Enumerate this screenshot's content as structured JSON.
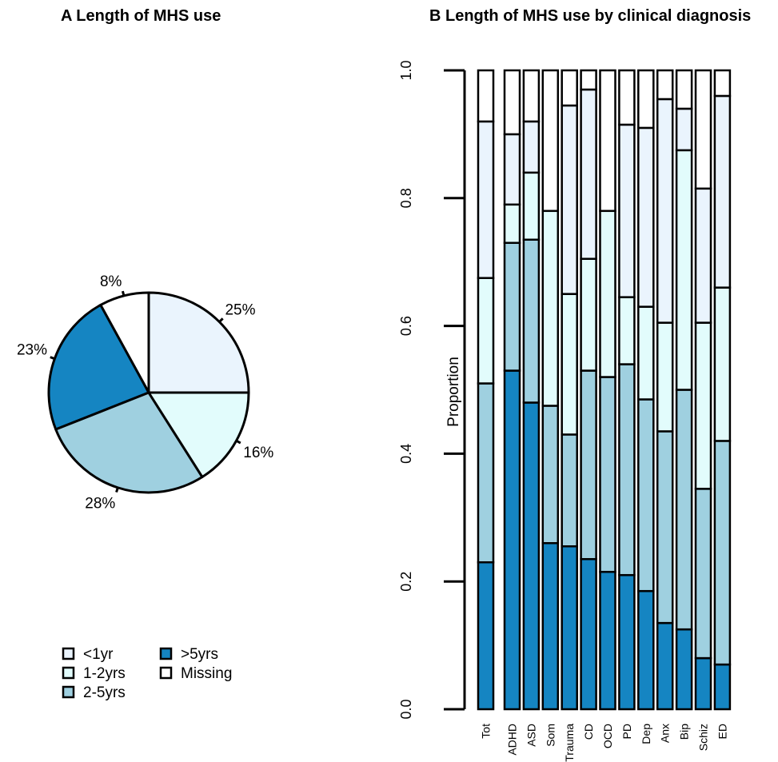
{
  "chart_data": [
    {
      "type": "pie",
      "title": "A  Length of MHS use",
      "slices": [
        {
          "name": "<1yr",
          "value": 25,
          "label": "25%",
          "color": "#eaf4fd"
        },
        {
          "name": "Missing",
          "value": 8,
          "label": "8%",
          "color": "#ffffff"
        },
        {
          "name": ">5yrs",
          "value": 23,
          "label": "23%",
          "color": "#1585c2"
        },
        {
          "name": "2-5yrs",
          "value": 28,
          "label": "28%",
          "color": "#9fd0e0"
        },
        {
          "name": "1-2yrs",
          "value": 16,
          "label": "16%",
          "color": "#e2fcfc"
        }
      ],
      "legend": {
        "placement": "bottom-left",
        "items": [
          {
            "label": "<1yr",
            "color": "#eaf4fd"
          },
          {
            "label": "1-2yrs",
            "color": "#e2fcfc"
          },
          {
            "label": "2-5yrs",
            "color": "#9fd0e0"
          },
          {
            "label": ">5yrs",
            "color": "#1585c2"
          },
          {
            "label": "Missing",
            "color": "#ffffff"
          }
        ]
      }
    },
    {
      "type": "bar",
      "stacked": true,
      "title": "B  Length of MHS use by clinical diagnosis",
      "ylabel": "Proportion",
      "xlabel": "",
      "ylim": [
        0,
        1
      ],
      "yticks": [
        "0.0",
        "0.2",
        "0.4",
        "0.6",
        "0.8",
        "1.0"
      ],
      "categories": [
        "Tot",
        "ADHD",
        "ASD",
        "Som",
        "Trauma",
        "CD",
        "OCD",
        "PD",
        "Dep",
        "Anx",
        "Bip",
        "Schiz",
        "ED"
      ],
      "series": [
        {
          "name": ">5yrs",
          "color": "#1585c2",
          "values": [
            0.23,
            0.53,
            0.48,
            0.26,
            0.255,
            0.235,
            0.215,
            0.21,
            0.185,
            0.135,
            0.125,
            0.08,
            0.07
          ]
        },
        {
          "name": "2-5yrs",
          "color": "#9fd0e0",
          "values": [
            0.28,
            0.2,
            0.255,
            0.215,
            0.175,
            0.295,
            0.305,
            0.33,
            0.3,
            0.3,
            0.375,
            0.265,
            0.35
          ]
        },
        {
          "name": "1-2yrs",
          "color": "#e2fcfc",
          "values": [
            0.165,
            0.06,
            0.105,
            0.305,
            0.22,
            0.175,
            0.26,
            0.105,
            0.145,
            0.17,
            0.375,
            0.26,
            0.24
          ]
        },
        {
          "name": "<1yr",
          "color": "#eaf4fd",
          "values": [
            0.245,
            0.11,
            0.08,
            0.0,
            0.295,
            0.265,
            0.0,
            0.27,
            0.28,
            0.35,
            0.065,
            0.21,
            0.3
          ]
        },
        {
          "name": "Missing",
          "color": "#ffffff",
          "values": [
            0.08,
            0.1,
            0.08,
            0.22,
            0.055,
            0.03,
            0.22,
            0.085,
            0.09,
            0.045,
            0.06,
            0.185,
            0.04
          ]
        }
      ]
    }
  ]
}
